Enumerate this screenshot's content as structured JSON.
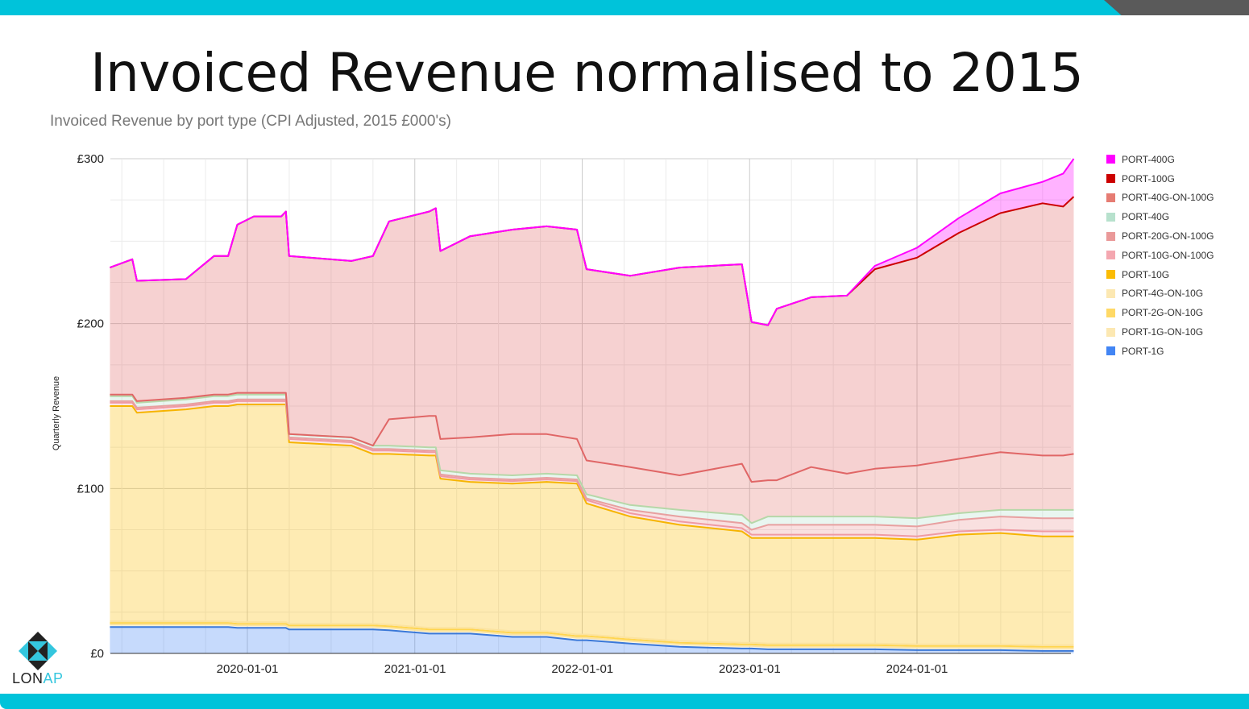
{
  "slide": {
    "title": "Invoiced Revenue normalised to 2015",
    "subtitle": "Invoiced Revenue by port type (CPI Adjusted, 2015 £000's)",
    "logo_text": "LONAP",
    "logo_text_parts": [
      "LON",
      "AP"
    ],
    "colors": {
      "accent": "#00c3da",
      "corner": "#5a5a5a",
      "logo_dark": "#222222",
      "logo_cyan": "#34c6de"
    }
  },
  "chart_data": {
    "type": "area",
    "stacked": true,
    "title": "",
    "xlabel": "",
    "ylabel": "Quarterly Revenue",
    "ylim": [
      0,
      300
    ],
    "yticks": [
      "£0",
      "£100",
      "£200",
      "£300"
    ],
    "ytick_values": [
      0,
      100,
      200,
      300
    ],
    "xticks": [
      "2020-01-01",
      "2021-01-01",
      "2022-01-01",
      "2023-01-01",
      "2024-01-01"
    ],
    "xlim": [
      "2019-03-07",
      "2024-12-08"
    ],
    "grid": true,
    "legend": "right",
    "x": [
      "2019-03-07",
      "2019-04-25",
      "2019-05-05",
      "2019-08-20",
      "2019-10-20",
      "2019-11-20",
      "2019-12-10",
      "2020-01-15",
      "2020-03-15",
      "2020-03-25",
      "2020-04-01",
      "2020-08-15",
      "2020-10-01",
      "2020-11-05",
      "2021-02-01",
      "2021-02-15",
      "2021-02-25",
      "2021-05-01",
      "2021-08-01",
      "2021-10-15",
      "2021-12-20",
      "2022-01-10",
      "2022-04-15",
      "2022-08-01",
      "2022-12-15",
      "2023-01-05",
      "2023-02-10",
      "2023-03-01",
      "2023-05-15",
      "2023-08-01",
      "2023-10-01",
      "2024-01-01",
      "2024-04-01",
      "2024-07-01",
      "2024-10-01",
      "2024-11-15",
      "2024-12-08"
    ],
    "series": [
      {
        "name": "PORT-1G",
        "color": "#4285f4",
        "line": "#3a78d8",
        "values": [
          16,
          16,
          16,
          16,
          16,
          16,
          15.5,
          15.5,
          15.5,
          15.5,
          14.5,
          14.5,
          14.5,
          14,
          12,
          12,
          12,
          12,
          10,
          10,
          8,
          8,
          6,
          4,
          3,
          3,
          2.5,
          2.5,
          2.5,
          2.5,
          2.5,
          2,
          2,
          2,
          1.5,
          1.5,
          1.5
        ]
      },
      {
        "name": "PORT-1G-ON-10G",
        "color": "#fce8b2",
        "line": "#fbe3a0",
        "values": [
          1.5,
          1.5,
          1.5,
          1.5,
          1.5,
          1.5,
          1.5,
          1.5,
          1.5,
          1.5,
          1.5,
          1.5,
          1.5,
          1.5,
          1.5,
          1.5,
          1.5,
          1.5,
          1.5,
          1.5,
          1.5,
          1.5,
          1.5,
          1.5,
          1.5,
          1.5,
          1.5,
          1.5,
          1.5,
          1.5,
          1.5,
          1.5,
          1.5,
          1.5,
          1.5,
          1.5,
          1.5
        ]
      },
      {
        "name": "PORT-2G-ON-10G",
        "color": "#ffd966",
        "line": "#ffd54f",
        "values": [
          1,
          1,
          1,
          1,
          1,
          1,
          1,
          1,
          1,
          1,
          1,
          1,
          1,
          1,
          1,
          1,
          1,
          1,
          1,
          1,
          1,
          1,
          1,
          1,
          1,
          1,
          1,
          1,
          1,
          1,
          1,
          1,
          1,
          1,
          1,
          1,
          1
        ]
      },
      {
        "name": "PORT-4G-ON-10G",
        "color": "#fce8b2",
        "line": "#fbe3a0",
        "values": [
          1,
          1,
          1,
          1,
          1,
          1,
          1,
          1,
          1,
          1,
          1,
          1,
          1,
          1,
          1,
          1,
          1,
          1,
          1,
          1,
          1,
          1,
          1,
          1,
          1,
          1,
          1,
          1,
          1,
          1,
          1,
          1,
          1,
          1,
          1,
          1,
          1
        ]
      },
      {
        "name": "PORT-10G",
        "color": "#fbbc04",
        "line": "#f6b400",
        "values": [
          130.5,
          130.5,
          126.5,
          128.5,
          130.5,
          130.5,
          132,
          132,
          132,
          132,
          110,
          108,
          103,
          103.5,
          104.5,
          104.5,
          90.5,
          88.5,
          89.5,
          90.5,
          91.5,
          79.5,
          73.5,
          70.5,
          67.5,
          63.5,
          64,
          64,
          64,
          64,
          64,
          63.5,
          66.5,
          67.5,
          66,
          66,
          66
        ]
      },
      {
        "name": "PORT-10G-ON-100G",
        "color": "#f4a7b0",
        "line": "#ef9aa3",
        "values": [
          2,
          2,
          2,
          2,
          2,
          2,
          2,
          2,
          2,
          2,
          2,
          2,
          2,
          2,
          2,
          2,
          1.5,
          1.5,
          1.5,
          1.5,
          1.5,
          2,
          2,
          2,
          2,
          2,
          2,
          2,
          2,
          2,
          2,
          2,
          2,
          2,
          3,
          3,
          3
        ]
      },
      {
        "name": "PORT-20G-ON-100G",
        "color": "#ea9999",
        "line": "#e8a0a0",
        "values": [
          1,
          1,
          1,
          1,
          1,
          1,
          1,
          1,
          1,
          1,
          1,
          1,
          1,
          1,
          1,
          1,
          1,
          1,
          1,
          1,
          1,
          1,
          2,
          3,
          3,
          3,
          6,
          6,
          6,
          6,
          6,
          6,
          7,
          8,
          8,
          8,
          8
        ]
      },
      {
        "name": "PORT-40G",
        "color": "#b7e1cd",
        "line": "#b6d7a8",
        "values": [
          3,
          3,
          3,
          3,
          3,
          3,
          3,
          3,
          3,
          3,
          2,
          2,
          2,
          2,
          2,
          2,
          2.5,
          2.5,
          2.5,
          2.5,
          2.5,
          2.5,
          3,
          4,
          5,
          4,
          5,
          5,
          5,
          5,
          5,
          5,
          4,
          4,
          5,
          5,
          5
        ]
      },
      {
        "name": "PORT-40G-ON-100G",
        "color": "#e67c73",
        "line": "#e06666",
        "values": [
          1,
          1,
          1,
          1,
          1,
          1,
          1,
          1,
          1,
          1,
          0,
          0,
          0,
          16,
          19,
          19,
          19,
          22,
          25,
          24,
          22,
          20.5,
          23,
          21,
          31,
          25,
          22,
          22,
          30,
          26,
          29,
          32,
          33,
          35,
          33,
          33,
          34
        ]
      },
      {
        "name": "PORT-100G",
        "color": "#e06666",
        "line": "#cc0000",
        "values": [
          77,
          82,
          73,
          72,
          84,
          84,
          102,
          107,
          107,
          110,
          108,
          107,
          115,
          120,
          124,
          126,
          114,
          122,
          124,
          126,
          127,
          116,
          116,
          126,
          121,
          97,
          94,
          104,
          103,
          108,
          121,
          126,
          137,
          145,
          153,
          151,
          156
        ]
      },
      {
        "name": "PORT-400G",
        "color": "#ff00ff",
        "line": "#ff00ff",
        "values": [
          0,
          0,
          0,
          0,
          0,
          0,
          0,
          0,
          0,
          0,
          0,
          0,
          0,
          0,
          0,
          0,
          0,
          0,
          0,
          0,
          0,
          0,
          0,
          0,
          0,
          0,
          0,
          0,
          0,
          0,
          2,
          6,
          9,
          12,
          13,
          20,
          23
        ]
      }
    ],
    "legend_entries": [
      "PORT-400G",
      "PORT-100G",
      "PORT-40G-ON-100G",
      "PORT-40G",
      "PORT-20G-ON-100G",
      "PORT-10G-ON-100G",
      "PORT-10G",
      "PORT-4G-ON-10G",
      "PORT-2G-ON-10G",
      "PORT-1G-ON-10G",
      "PORT-1G"
    ],
    "legend_colors": [
      "#ff00ff",
      "#cc0000",
      "#e67c73",
      "#b7e1cd",
      "#ea9999",
      "#f4a7b0",
      "#fbbc04",
      "#fce8b2",
      "#ffd966",
      "#fce8b2",
      "#4285f4"
    ]
  }
}
